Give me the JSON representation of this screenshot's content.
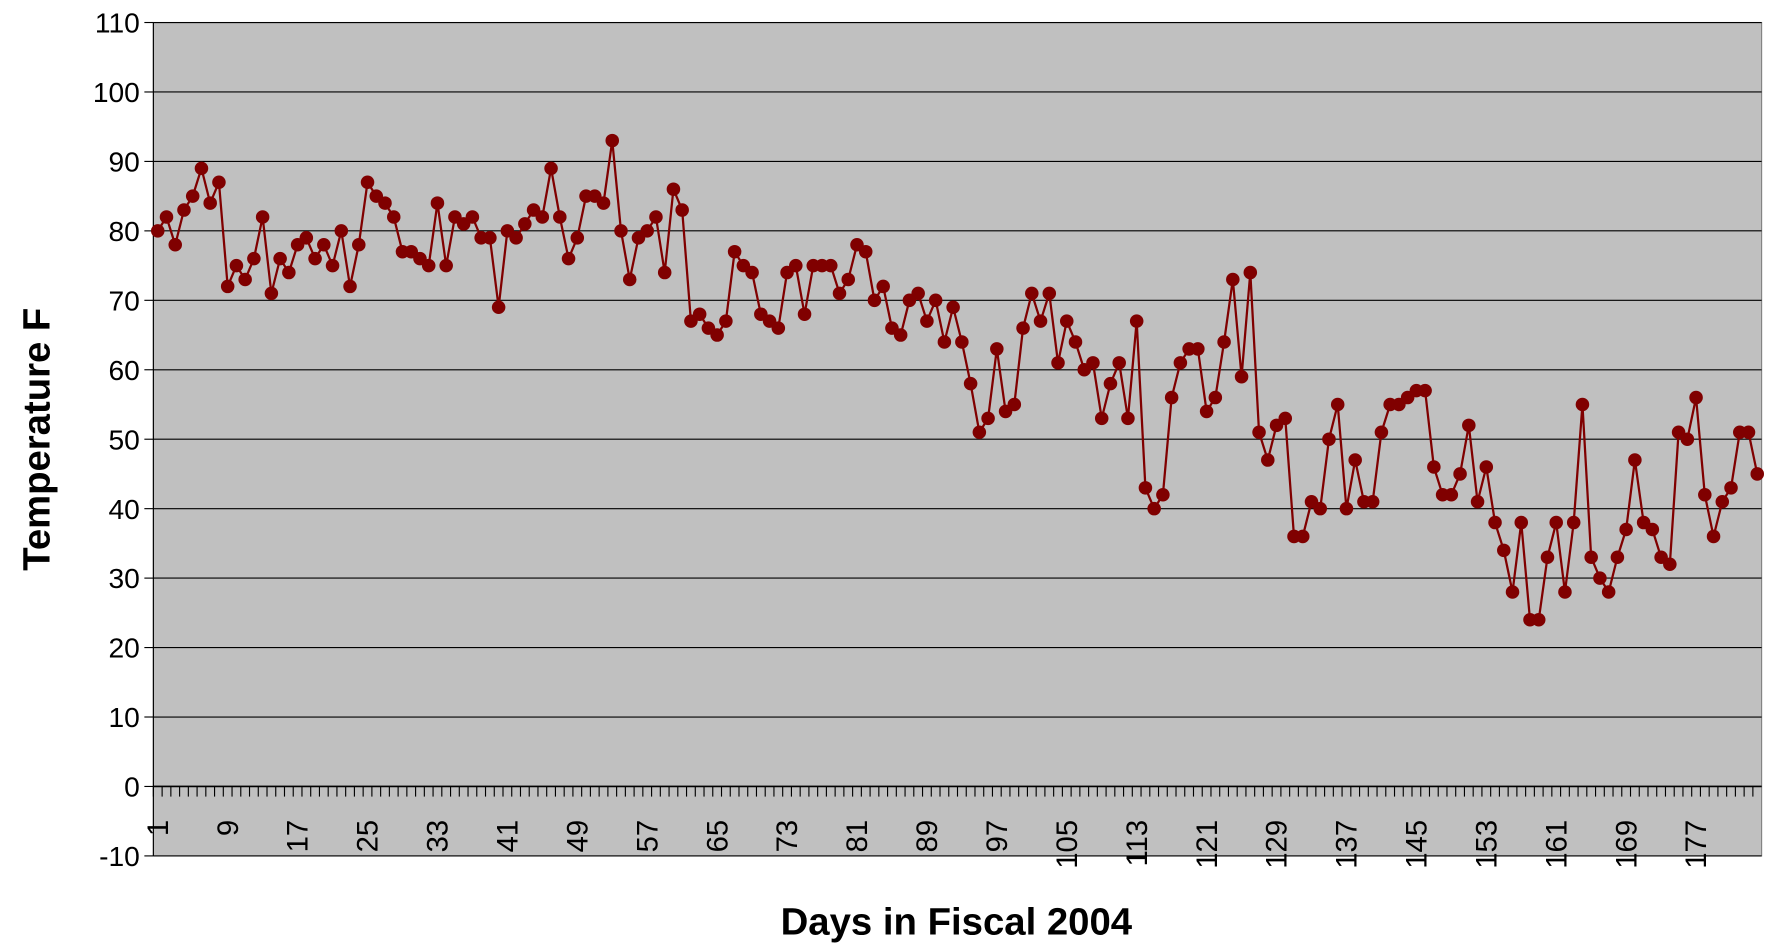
{
  "chart_data": {
    "type": "line",
    "xlabel": "Days in Fiscal 2004",
    "ylabel": "Temperature F",
    "categories": [
      1,
      null,
      null,
      null,
      null,
      null,
      null,
      null,
      9,
      null,
      null,
      null,
      null,
      null,
      null,
      null,
      17,
      null,
      null,
      null,
      null,
      null,
      null,
      null,
      25,
      null,
      null,
      null,
      null,
      null,
      null,
      null,
      33,
      null,
      null,
      null,
      null,
      null,
      null,
      null,
      41,
      null,
      null,
      null,
      null,
      null,
      null,
      null,
      49,
      null,
      null,
      null,
      null,
      null,
      null,
      null,
      57,
      null,
      null,
      null,
      null,
      null,
      null,
      null,
      65,
      null,
      null,
      null,
      null,
      null,
      null,
      null,
      73,
      null,
      null,
      null,
      null,
      null,
      null,
      null,
      81,
      null,
      null,
      null,
      null,
      null,
      null,
      null,
      89,
      null,
      null,
      null,
      null,
      null,
      null,
      null,
      97,
      null,
      null,
      null,
      null,
      null,
      null,
      null,
      105,
      null,
      null,
      null,
      null,
      null,
      null,
      null,
      113,
      null,
      null,
      null,
      null,
      null,
      null,
      null,
      121,
      null,
      null,
      null,
      null,
      null,
      null,
      null,
      129,
      null,
      null,
      null,
      null,
      null,
      null,
      null,
      137,
      null,
      null,
      null,
      null,
      null,
      null,
      null,
      145,
      null,
      null,
      null,
      null,
      null,
      null,
      null,
      153,
      null,
      null,
      null,
      null,
      null,
      null,
      null,
      161,
      null,
      null,
      null,
      null,
      null,
      null,
      null,
      169,
      null,
      null,
      null,
      null,
      null,
      null,
      null,
      177,
      null,
      null,
      null,
      null,
      null,
      null,
      null
    ],
    "series": [
      {
        "name": "Temperature",
        "color": "#800000",
        "values": [
          80,
          82,
          78,
          83,
          85,
          89,
          84,
          87,
          72,
          75,
          73,
          76,
          82,
          71,
          76,
          74,
          78,
          79,
          76,
          78,
          75,
          80,
          72,
          78,
          87,
          85,
          84,
          82,
          77,
          77,
          76,
          75,
          84,
          75,
          82,
          81,
          82,
          79,
          79,
          69,
          80,
          79,
          81,
          83,
          82,
          89,
          82,
          76,
          79,
          85,
          85,
          84,
          93,
          80,
          73,
          79,
          80,
          82,
          74,
          86,
          83,
          67,
          68,
          66,
          65,
          67,
          77,
          75,
          74,
          68,
          67,
          66,
          74,
          75,
          68,
          75,
          75,
          75,
          71,
          73,
          78,
          77,
          70,
          72,
          66,
          65,
          70,
          71,
          67,
          70,
          64,
          69,
          64,
          58,
          51,
          53,
          63,
          54,
          55,
          66,
          71,
          67,
          71,
          61,
          67,
          64,
          60,
          61,
          53,
          58,
          61,
          53,
          67,
          43,
          40,
          42,
          56,
          61,
          63,
          63,
          54,
          56,
          64,
          73,
          59,
          74,
          51,
          47,
          52,
          53,
          36,
          36,
          41,
          40,
          50,
          55,
          40,
          47,
          41,
          41,
          51,
          55,
          55,
          56,
          57,
          57,
          46,
          42,
          42,
          45,
          52,
          41,
          46,
          38,
          34,
          28,
          38,
          24,
          24,
          33,
          38,
          28,
          38,
          55,
          33,
          30,
          28,
          33,
          37,
          47,
          38,
          37,
          33,
          32,
          51,
          50,
          56,
          42,
          36,
          41,
          43,
          51,
          51,
          45
        ]
      }
    ],
    "ylim": [
      -10,
      110
    ],
    "yticks": [
      -10,
      0,
      10,
      20,
      30,
      40,
      50,
      60,
      70,
      80,
      90,
      100,
      110
    ],
    "grid": true,
    "plot_background": "#c0c0c0"
  }
}
